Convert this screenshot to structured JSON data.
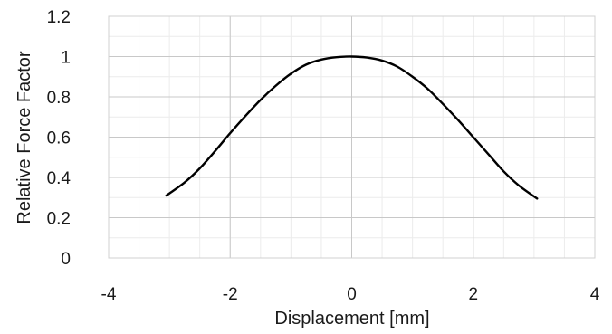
{
  "chart_data": {
    "type": "line",
    "title": "",
    "xlabel": "Displacement [mm]",
    "ylabel": "Relative Force Factor",
    "xlim": [
      -4,
      4
    ],
    "ylim": [
      0,
      1.2
    ],
    "x_ticks": [
      "-4",
      "-2",
      "0",
      "2",
      "4"
    ],
    "y_ticks": [
      "0",
      "0.2",
      "0.4",
      "0.6",
      "0.8",
      "1",
      "1.2"
    ],
    "x_tick_values": [
      -4,
      -2,
      0,
      2,
      4
    ],
    "y_tick_values": [
      0,
      0.2,
      0.4,
      0.6,
      0.8,
      1,
      1.2
    ],
    "x_minor_step": 0.5,
    "y_minor_step": 0.1,
    "grid": true,
    "legend": "none",
    "line_color": "#000000",
    "series": [
      {
        "x": [
          -3.05,
          -2.75,
          -2.5,
          -2.25,
          -2.0,
          -1.75,
          -1.5,
          -1.25,
          -1.0,
          -0.75,
          -0.5,
          -0.25,
          0.0,
          0.25,
          0.5,
          0.75,
          1.0,
          1.25,
          1.5,
          1.75,
          2.0,
          2.25,
          2.5,
          2.75,
          3.05
        ],
        "y": [
          0.31,
          0.375,
          0.445,
          0.53,
          0.62,
          0.705,
          0.785,
          0.855,
          0.915,
          0.96,
          0.985,
          0.997,
          1.0,
          0.995,
          0.98,
          0.95,
          0.9,
          0.84,
          0.765,
          0.685,
          0.6,
          0.515,
          0.43,
          0.36,
          0.295
        ]
      }
    ]
  }
}
